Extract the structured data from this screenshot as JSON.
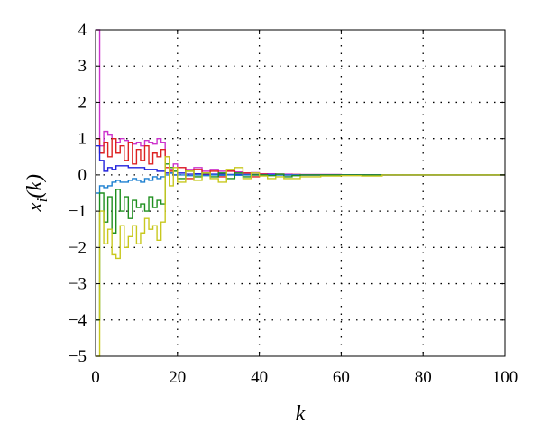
{
  "chart_data": {
    "type": "line",
    "step": true,
    "title": "",
    "xlabel": "k",
    "ylabel": "x_i(k)",
    "ylabel_parts": {
      "base": "x",
      "sub": "i",
      "arg": "(k)"
    },
    "xlim": [
      0,
      100
    ],
    "ylim": [
      -5,
      4
    ],
    "xticks": [
      0,
      20,
      40,
      60,
      80,
      100
    ],
    "yticks": [
      -5,
      -4,
      -3,
      -2,
      -1,
      0,
      1,
      2,
      3,
      4
    ],
    "xtick_labels": [
      "0",
      "20",
      "40",
      "60",
      "80",
      "100"
    ],
    "ytick_labels": [
      "−5",
      "−4",
      "−3",
      "−2",
      "−1",
      "0",
      "1",
      "2",
      "3",
      "4"
    ],
    "grid": "dotted",
    "legend": "none",
    "series": [
      {
        "color": "#cc33cc",
        "x": [
          0,
          1,
          2,
          3,
          4,
          5,
          6,
          7,
          8,
          9,
          10,
          11,
          12,
          13,
          14,
          15,
          16,
          17,
          18,
          19,
          20,
          22,
          24,
          26,
          28,
          30,
          32,
          34,
          36,
          38,
          40,
          42,
          44,
          46,
          48,
          50,
          55,
          60,
          65,
          70,
          100
        ],
        "y": [
          4.0,
          0.8,
          1.2,
          1.1,
          1.0,
          0.9,
          1.0,
          0.95,
          0.9,
          0.85,
          0.9,
          0.8,
          0.95,
          0.9,
          0.85,
          1.0,
          0.9,
          0.5,
          0.15,
          0.3,
          0.2,
          0.15,
          0.2,
          0.1,
          0.15,
          0.1,
          0.12,
          0.08,
          0.05,
          0.06,
          0.03,
          0.03,
          0.02,
          0.02,
          0.01,
          0.01,
          0.01,
          0.0,
          0.0,
          0.0,
          0.0
        ]
      },
      {
        "color": "#dd2222",
        "x": [
          0,
          1,
          2,
          3,
          4,
          5,
          6,
          7,
          8,
          9,
          10,
          11,
          12,
          13,
          14,
          15,
          16,
          17,
          18,
          19,
          20,
          22,
          24,
          26,
          28,
          30,
          32,
          34,
          36,
          38,
          40,
          42,
          44,
          46,
          48,
          50,
          55,
          60,
          65,
          70,
          100
        ],
        "y": [
          1.0,
          0.6,
          0.9,
          0.5,
          1.0,
          0.6,
          0.8,
          0.4,
          0.9,
          0.3,
          0.7,
          0.4,
          0.8,
          0.3,
          0.6,
          0.5,
          0.7,
          0.2,
          0.1,
          0.0,
          0.2,
          -0.1,
          0.15,
          0.0,
          0.1,
          -0.05,
          0.1,
          0.0,
          0.05,
          -0.05,
          0.02,
          0.0,
          0.02,
          0.0,
          0.01,
          0.0,
          0.0,
          0.0,
          0.0,
          0.0,
          0.0
        ]
      },
      {
        "color": "#2222dd",
        "x": [
          0,
          1,
          2,
          3,
          4,
          5,
          6,
          7,
          8,
          9,
          10,
          11,
          12,
          13,
          14,
          15,
          16,
          17,
          18,
          19,
          20,
          22,
          24,
          26,
          28,
          30,
          32,
          34,
          36,
          38,
          40,
          42,
          44,
          46,
          48,
          50,
          55,
          60,
          65,
          70,
          100
        ],
        "y": [
          0.8,
          0.4,
          0.1,
          0.2,
          0.15,
          0.25,
          0.25,
          0.25,
          0.2,
          0.2,
          0.2,
          0.2,
          0.15,
          0.15,
          0.15,
          0.1,
          0.1,
          0.05,
          0.05,
          0.0,
          0.05,
          0.02,
          0.03,
          0.02,
          0.02,
          0.02,
          0.01,
          0.01,
          0.01,
          0.01,
          0.0,
          0.01,
          0.0,
          0.0,
          0.0,
          0.0,
          0.0,
          0.0,
          0.0,
          0.0,
          0.0
        ]
      },
      {
        "color": "#1b7fd0",
        "x": [
          0,
          1,
          2,
          3,
          4,
          5,
          6,
          7,
          8,
          9,
          10,
          11,
          12,
          13,
          14,
          15,
          16,
          17,
          18,
          19,
          20,
          22,
          24,
          26,
          28,
          30,
          32,
          34,
          36,
          38,
          40,
          42,
          44,
          46,
          48,
          50,
          55,
          60,
          65,
          70,
          100
        ],
        "y": [
          -0.5,
          -0.3,
          -0.35,
          -0.3,
          -0.2,
          -0.15,
          -0.2,
          -0.2,
          -0.15,
          -0.1,
          -0.15,
          -0.2,
          -0.1,
          -0.15,
          -0.05,
          -0.1,
          -0.05,
          0.0,
          0.05,
          0.0,
          0.0,
          -0.02,
          0.0,
          -0.02,
          0.0,
          -0.01,
          0.0,
          -0.01,
          0.0,
          0.0,
          0.0,
          0.0,
          0.0,
          0.0,
          0.0,
          0.0,
          0.0,
          0.0,
          0.0,
          0.0,
          0.0
        ]
      },
      {
        "color": "#1f8f1f",
        "x": [
          0,
          1,
          2,
          3,
          4,
          5,
          6,
          7,
          8,
          9,
          10,
          11,
          12,
          13,
          14,
          15,
          16,
          17,
          18,
          19,
          20,
          22,
          24,
          26,
          28,
          30,
          32,
          34,
          36,
          38,
          40,
          42,
          44,
          46,
          48,
          50,
          55,
          60,
          65,
          70,
          100
        ],
        "y": [
          -4.0,
          -0.5,
          -1.3,
          -0.6,
          -1.6,
          -0.4,
          -1.0,
          -0.6,
          -1.2,
          -0.7,
          -0.9,
          -0.8,
          -1.0,
          -0.6,
          -0.9,
          -0.7,
          -0.8,
          0.3,
          0.2,
          0.1,
          -0.1,
          0.1,
          -0.05,
          0.05,
          -0.05,
          0.05,
          -0.1,
          0.05,
          -0.05,
          0.0,
          0.0,
          -0.02,
          0.02,
          -0.05,
          -0.02,
          0.0,
          0.0,
          0.0,
          0.0,
          0.0,
          0.0
        ]
      },
      {
        "color": "#c8c81e",
        "x": [
          0,
          1,
          2,
          3,
          4,
          5,
          6,
          7,
          8,
          9,
          10,
          11,
          12,
          13,
          14,
          15,
          16,
          17,
          18,
          19,
          20,
          22,
          24,
          26,
          28,
          30,
          32,
          34,
          36,
          38,
          40,
          42,
          44,
          46,
          48,
          50,
          55,
          60,
          65,
          70,
          100
        ],
        "y": [
          -5.0,
          -1.0,
          -1.9,
          -1.5,
          -2.2,
          -2.3,
          -1.4,
          -2.0,
          -1.7,
          -1.4,
          -1.9,
          -1.6,
          -1.2,
          -1.5,
          -1.4,
          -1.8,
          -1.3,
          0.5,
          -0.3,
          0.2,
          -0.2,
          0.1,
          -0.15,
          0.05,
          -0.1,
          -0.2,
          0.15,
          0.2,
          -0.1,
          0.05,
          -0.03,
          -0.1,
          -0.05,
          -0.1,
          -0.1,
          -0.05,
          -0.03,
          -0.02,
          -0.03,
          0.0,
          0.0
        ]
      }
    ]
  }
}
